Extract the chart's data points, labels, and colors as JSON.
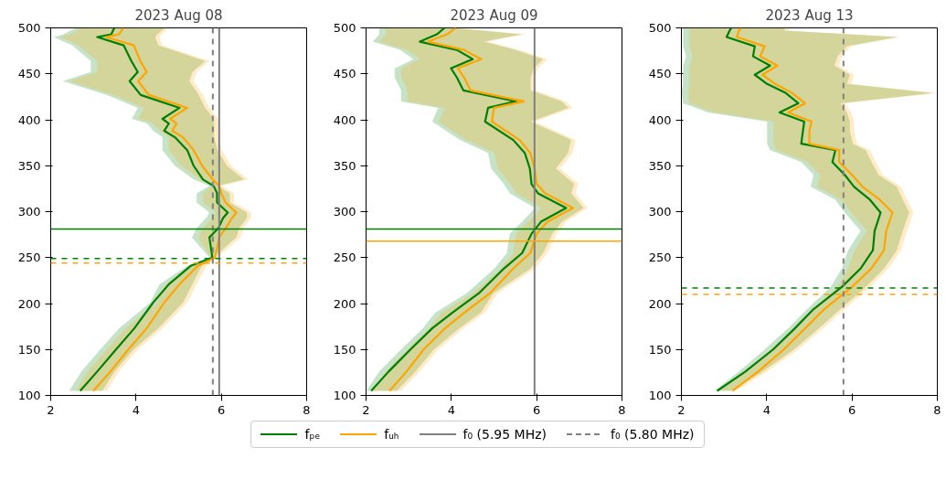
{
  "chart_data": [
    {
      "type": "line",
      "title": "2023 Aug 08",
      "orientation": "horizontal",
      "xlim": [
        2,
        8
      ],
      "xticks": [
        2,
        4,
        6,
        8
      ],
      "ylim": [
        100,
        500
      ],
      "yticks": [
        100,
        150,
        200,
        250,
        300,
        350,
        400,
        450,
        500
      ],
      "grid": false,
      "legend": "bottom",
      "line_style": "solid",
      "marker": "none",
      "x": [
        105,
        126,
        150,
        173,
        201,
        221,
        241,
        250,
        272,
        282,
        293,
        299,
        310,
        320,
        328,
        335,
        350,
        367,
        381,
        388,
        396,
        401,
        413,
        427,
        442,
        452,
        464,
        481,
        490,
        493,
        500
      ],
      "series": [
        {
          "name": "fₚₑ",
          "color": "#008000",
          "values": [
            2.69,
            3.09,
            3.53,
            3.96,
            4.4,
            4.77,
            5.28,
            5.79,
            5.72,
            5.93,
            6.04,
            6.15,
            5.9,
            5.9,
            5.82,
            5.57,
            5.35,
            5.2,
            4.91,
            4.66,
            4.77,
            4.62,
            5.02,
            4.11,
            3.85,
            4.04,
            3.89,
            3.71,
            3.09,
            3.42,
            3.49
          ],
          "lower": [
            2.43,
            2.72,
            3.16,
            3.6,
            4.33,
            4.55,
            5.2,
            5.72,
            5.31,
            5.42,
            5.64,
            5.72,
            5.42,
            5.42,
            5.72,
            5.35,
            4.91,
            4.62,
            4.62,
            4.4,
            4.26,
            3.9,
            4.04,
            3.31,
            2.28,
            2.94,
            2.94,
            2.5,
            2.07,
            2.3,
            2.58
          ],
          "upper": [
            3.21,
            3.5,
            3.94,
            4.52,
            5.1,
            5.32,
            5.54,
            5.82,
            6.35,
            6.42,
            6.6,
            6.6,
            6.2,
            6.2,
            5.91,
            6.53,
            6.13,
            5.91,
            5.83,
            5.83,
            5.83,
            5.83,
            5.62,
            5.47,
            5.25,
            5.32,
            5.62,
            4.52,
            4.45,
            4.5,
            4.67
          ]
        },
        {
          "name": "fᵤₕ",
          "color": "#ffa500",
          "values": [
            3.0,
            3.4,
            3.82,
            4.25,
            4.66,
            5.02,
            5.45,
            5.85,
            5.95,
            6.1,
            6.25,
            6.35,
            6.1,
            6.0,
            5.95,
            5.8,
            5.55,
            5.35,
            5.1,
            4.85,
            4.95,
            4.8,
            5.2,
            4.3,
            4.05,
            4.25,
            4.1,
            3.95,
            3.3,
            3.6,
            3.7
          ],
          "lower": [
            2.58,
            2.87,
            3.31,
            3.75,
            4.48,
            4.7,
            5.35,
            5.75,
            5.46,
            5.57,
            5.79,
            5.87,
            5.57,
            5.57,
            5.8,
            5.5,
            5.06,
            4.77,
            4.77,
            4.55,
            4.41,
            4.05,
            4.19,
            3.46,
            2.43,
            3.09,
            3.09,
            2.65,
            2.22,
            2.45,
            2.73
          ],
          "upper": [
            3.31,
            3.6,
            4.04,
            4.62,
            5.2,
            5.42,
            5.64,
            5.9,
            6.45,
            6.52,
            6.7,
            6.7,
            6.3,
            6.3,
            6.01,
            6.63,
            6.23,
            6.01,
            5.93,
            5.93,
            5.93,
            5.93,
            5.72,
            5.57,
            5.35,
            5.42,
            5.72,
            4.62,
            4.55,
            4.6,
            4.77
          ]
        }
      ],
      "ref_lines": [
        {
          "axis": "x",
          "value": 5.95,
          "label": "f₀ (5.95 MHz)",
          "color": "#808080",
          "line_style": "solid"
        },
        {
          "axis": "x",
          "value": 5.8,
          "label": "f₀ (5.80 MHz)",
          "color": "#808080",
          "line_style": "dashed"
        },
        {
          "axis": "y",
          "value": 281,
          "color": "#008000",
          "line_style": "solid"
        },
        {
          "axis": "y",
          "value": 249,
          "color": "#008000",
          "line_style": "dashed"
        },
        {
          "axis": "y",
          "value": 244,
          "color": "#ffa500",
          "line_style": "dashed"
        }
      ]
    },
    {
      "type": "line",
      "title": "2023 Aug 09",
      "orientation": "horizontal",
      "xlim": [
        2,
        8
      ],
      "xticks": [
        2,
        4,
        6,
        8
      ],
      "ylim": [
        100,
        500
      ],
      "yticks": [
        100,
        150,
        200,
        250,
        300,
        350,
        400,
        450,
        500
      ],
      "grid": false,
      "line_style": "solid",
      "marker": "none",
      "x": [
        105,
        126,
        150,
        173,
        190,
        211,
        238,
        255,
        276,
        289,
        304,
        320,
        330,
        347,
        364,
        378,
        398,
        413,
        420,
        432,
        446,
        456,
        466,
        476,
        485,
        493,
        500
      ],
      "series": [
        {
          "color": "#008000",
          "values": [
            2.12,
            2.53,
            3.04,
            3.55,
            4.02,
            4.64,
            5.23,
            5.66,
            5.88,
            6.1,
            6.69,
            6.03,
            5.88,
            5.84,
            5.72,
            5.45,
            4.79,
            4.86,
            5.52,
            4.28,
            4.13,
            3.99,
            4.5,
            4.13,
            3.26,
            3.66,
            3.84
          ],
          "lower": [
            2.01,
            2.31,
            2.82,
            3.33,
            3.62,
            4.35,
            5.01,
            5.3,
            5.37,
            5.66,
            5.96,
            5.37,
            5.23,
            4.93,
            4.86,
            4.2,
            3.55,
            3.69,
            2.82,
            2.82,
            2.67,
            2.67,
            3.11,
            2.8,
            2.16,
            2.31,
            2.31
          ],
          "upper": [
            2.72,
            3.16,
            3.59,
            4.18,
            4.69,
            4.98,
            5.86,
            6.15,
            6.37,
            6.59,
            7.1,
            6.81,
            6.88,
            6.45,
            6.74,
            6.81,
            5.86,
            6.74,
            6.59,
            5.86,
            5.86,
            5.93,
            6.15,
            5.5,
            4.76,
            5.64,
            4.03
          ]
        },
        {
          "color": "#ffa500",
          "values": [
            2.55,
            2.95,
            3.35,
            3.85,
            4.3,
            4.9,
            5.45,
            5.85,
            6.0,
            6.25,
            6.85,
            6.2,
            6.0,
            5.95,
            5.85,
            5.6,
            4.95,
            5.0,
            5.7,
            4.45,
            4.3,
            4.15,
            4.7,
            4.3,
            3.45,
            3.9,
            4.1
          ],
          "lower": [
            2.16,
            2.46,
            2.97,
            3.48,
            3.77,
            4.5,
            5.16,
            5.45,
            5.52,
            5.81,
            6.11,
            5.52,
            5.38,
            5.08,
            5.01,
            4.35,
            3.7,
            3.84,
            2.97,
            2.97,
            2.82,
            2.82,
            3.26,
            2.95,
            2.31,
            2.46,
            2.46
          ],
          "upper": [
            2.82,
            3.26,
            3.69,
            4.28,
            4.79,
            5.08,
            5.96,
            6.25,
            6.47,
            6.69,
            7.2,
            6.91,
            6.98,
            6.55,
            6.84,
            6.91,
            5.96,
            6.84,
            6.69,
            5.96,
            5.96,
            6.03,
            6.25,
            5.6,
            4.86,
            5.74,
            4.13
          ]
        }
      ],
      "ref_lines": [
        {
          "axis": "x",
          "value": 5.95,
          "color": "#808080",
          "line_style": "solid"
        },
        {
          "axis": "y",
          "value": 281,
          "color": "#008000",
          "line_style": "solid"
        },
        {
          "axis": "y",
          "value": 268,
          "color": "#ffa500",
          "line_style": "solid"
        }
      ]
    },
    {
      "type": "line",
      "title": "2023 Aug 13",
      "orientation": "horizontal",
      "xlim": [
        2,
        8
      ],
      "xticks": [
        2,
        4,
        6,
        8
      ],
      "ylim": [
        100,
        500
      ],
      "yticks": [
        100,
        150,
        200,
        250,
        300,
        350,
        400,
        450,
        500
      ],
      "grid": false,
      "line_style": "solid",
      "marker": "none",
      "x": [
        105,
        126,
        150,
        173,
        194,
        218,
        238,
        258,
        279,
        299,
        313,
        327,
        340,
        354,
        367,
        374,
        388,
        398,
        408,
        418,
        429,
        439,
        449,
        459,
        469,
        480,
        490,
        497,
        500
      ],
      "series": [
        {
          "color": "#008000",
          "values": [
            2.84,
            3.5,
            4.15,
            4.66,
            5.1,
            5.76,
            6.2,
            6.49,
            6.53,
            6.67,
            6.42,
            6.05,
            5.83,
            5.54,
            5.61,
            4.81,
            4.85,
            4.88,
            4.3,
            4.74,
            4.45,
            4.01,
            3.72,
            4.08,
            3.68,
            3.72,
            3.06,
            3.13,
            3.17
          ],
          "lower": [
            2.77,
            3.35,
            3.95,
            4.5,
            4.95,
            5.5,
            5.76,
            5.91,
            6.2,
            5.83,
            5.61,
            5.03,
            5.1,
            4.81,
            4.08,
            4.01,
            4.01,
            4.01,
            2.62,
            2.04,
            2.0,
            2.04,
            2.04,
            2.04,
            2.11,
            2.04,
            2.04,
            2.04,
            2.04
          ],
          "upper": [
            3.18,
            3.91,
            4.64,
            5.22,
            5.73,
            6.32,
            6.75,
            7.05,
            7.19,
            7.34,
            7.19,
            7.05,
            6.62,
            6.46,
            6.32,
            6.02,
            5.95,
            5.95,
            5.88,
            5.73,
            7.89,
            5.88,
            5.95,
            5.59,
            5.66,
            5.88,
            7.05,
            4.42,
            4.42
          ]
        },
        {
          "color": "#ffa500",
          "values": [
            3.2,
            3.8,
            4.4,
            4.9,
            5.35,
            6.0,
            6.45,
            6.75,
            6.8,
            6.95,
            6.65,
            6.25,
            6.0,
            5.7,
            5.7,
            5.0,
            5.0,
            5.05,
            4.5,
            4.9,
            4.6,
            4.2,
            3.9,
            4.25,
            3.85,
            3.95,
            3.3,
            3.35,
            3.4
          ],
          "lower": [
            2.92,
            3.5,
            4.1,
            4.65,
            5.1,
            5.65,
            5.91,
            6.06,
            6.35,
            5.98,
            5.76,
            5.18,
            5.25,
            4.96,
            4.23,
            4.16,
            4.16,
            4.16,
            2.77,
            2.19,
            2.15,
            2.19,
            2.19,
            2.19,
            2.26,
            2.19,
            2.19,
            2.19,
            2.19
          ],
          "upper": [
            3.28,
            4.01,
            4.74,
            5.32,
            5.83,
            6.42,
            6.85,
            7.15,
            7.29,
            7.44,
            7.29,
            7.15,
            6.72,
            6.56,
            6.42,
            6.12,
            6.05,
            6.05,
            5.98,
            5.83,
            7.99,
            5.98,
            6.05,
            5.69,
            5.76,
            5.98,
            7.15,
            4.52,
            4.52
          ]
        }
      ],
      "ref_lines": [
        {
          "axis": "x",
          "value": 5.8,
          "color": "#808080",
          "line_style": "dashed"
        },
        {
          "axis": "y",
          "value": 217,
          "color": "#008000",
          "line_style": "dashed"
        },
        {
          "axis": "y",
          "value": 210,
          "color": "#ffa500",
          "line_style": "dashed"
        }
      ]
    }
  ]
}
